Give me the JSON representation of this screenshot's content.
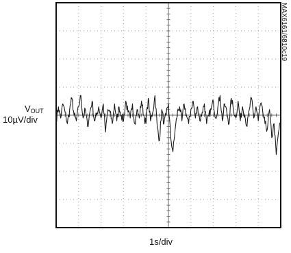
{
  "chart_data": {
    "type": "line",
    "title": "",
    "ylabel_symbol": "V",
    "ylabel_subscript": "OUT",
    "ylabel_scale": "10µV/div",
    "xlabel": "1s/div",
    "figure_id": "MAX6161/6810c19",
    "grid": true,
    "x_divisions": 10,
    "y_divisions": 8,
    "x_unit": "s",
    "y_unit": "µV",
    "xlim": [
      0,
      10
    ],
    "ylim": [
      -40,
      40
    ],
    "series": [
      {
        "x": [
          0,
          0.1,
          0.2,
          0.3,
          0.4,
          0.5,
          0.6,
          0.7,
          0.8,
          0.9,
          1.0,
          1.1,
          1.2,
          1.3,
          1.4,
          1.5,
          1.6,
          1.7,
          1.8,
          1.9,
          2.0,
          2.1,
          2.2,
          2.3,
          2.4,
          2.5,
          2.6,
          2.7,
          2.8,
          2.9,
          3.0,
          3.1,
          3.2,
          3.3,
          3.4,
          3.5,
          3.6,
          3.7,
          3.8,
          3.9,
          4.0,
          4.1,
          4.2,
          4.3,
          4.4,
          4.5,
          4.6,
          4.7,
          4.8,
          4.9,
          5.0,
          5.1,
          5.2,
          5.3,
          5.4,
          5.5,
          5.6,
          5.7,
          5.8,
          5.9,
          6.0,
          6.1,
          6.2,
          6.3,
          6.4,
          6.5,
          6.6,
          6.7,
          6.8,
          6.9,
          7.0,
          7.1,
          7.2,
          7.3,
          7.4,
          7.5,
          7.6,
          7.7,
          7.8,
          7.9,
          8.0,
          8.1,
          8.2,
          8.3,
          8.4,
          8.5,
          8.6,
          8.7,
          8.8,
          8.9,
          9.0,
          9.1,
          9.2,
          9.3,
          9.4,
          9.5,
          9.6,
          9.7,
          9.8,
          9.9,
          10.0
        ],
        "values": [
          -2,
          3,
          -1,
          4,
          1,
          -3,
          2,
          6,
          0,
          -2,
          3,
          7,
          -1,
          2,
          -4,
          1,
          5,
          -2,
          0,
          3,
          -1,
          4,
          -6,
          2,
          1,
          -3,
          4,
          -2,
          3,
          0,
          -2,
          5,
          1,
          -1,
          4,
          -3,
          2,
          -1,
          5,
          0,
          -3,
          6,
          -2,
          1,
          7,
          -4,
          -9,
          2,
          -3,
          0,
          4,
          -8,
          -13,
          -5,
          1,
          3,
          -2,
          4,
          0,
          -3,
          2,
          5,
          -1,
          3,
          -2,
          1,
          4,
          -3,
          0,
          2,
          5,
          -1,
          3,
          7,
          -2,
          4,
          1,
          -3,
          6,
          2,
          -1,
          5,
          -2,
          3,
          0,
          -4,
          2,
          6,
          -1,
          3,
          -2,
          4,
          1,
          -3,
          -5,
          2,
          -8,
          -3,
          -14,
          -6,
          -2
        ]
      }
    ]
  }
}
